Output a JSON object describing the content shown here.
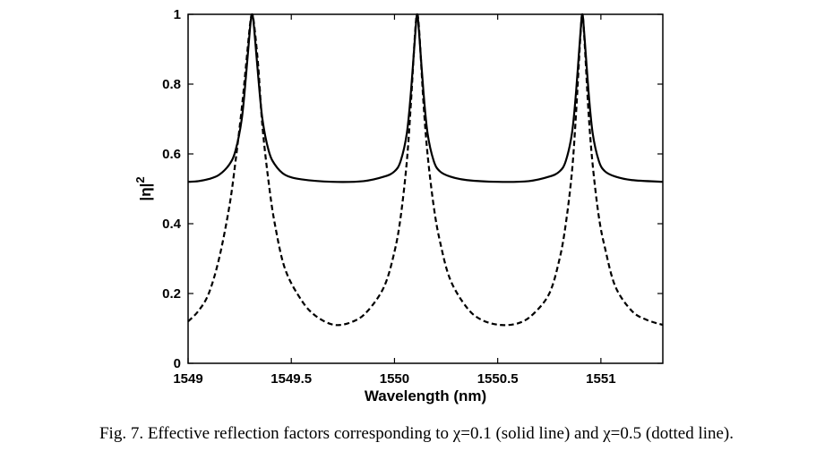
{
  "caption": "Fig. 7. Effective reflection factors corresponding to χ=0.1 (solid line) and χ=0.5 (dotted line).",
  "chart_data": {
    "type": "line",
    "xlabel": "Wavelength (nm)",
    "ylabel": "|η|",
    "ylabel_superscript": "2",
    "xlim": [
      1549,
      1551.3
    ],
    "ylim": [
      0,
      1
    ],
    "xticks": [
      1549,
      1549.5,
      1550,
      1550.5,
      1551
    ],
    "xtick_labels": [
      "1549",
      "1549.5",
      "1550",
      "1550.5",
      "1551"
    ],
    "yticks": [
      0,
      0.2,
      0.4,
      0.6,
      0.8,
      1
    ],
    "ytick_labels": [
      "0",
      "0.2",
      "0.4",
      "0.6",
      "0.8",
      "1"
    ],
    "grid": false,
    "legend": false,
    "series": [
      {
        "style": "solid",
        "color": "#000000",
        "x": [
          1549.0,
          1549.05,
          1549.1,
          1549.15,
          1549.2,
          1549.23,
          1549.26,
          1549.28,
          1549.3,
          1549.31,
          1549.32,
          1549.34,
          1549.36,
          1549.39,
          1549.42,
          1549.47,
          1549.55,
          1549.7,
          1549.85,
          1549.95,
          1550.0,
          1550.03,
          1550.06,
          1550.08,
          1550.1,
          1550.11,
          1550.12,
          1550.14,
          1550.16,
          1550.19,
          1550.22,
          1550.27,
          1550.35,
          1550.5,
          1550.65,
          1550.75,
          1550.8,
          1550.83,
          1550.86,
          1550.88,
          1550.9,
          1550.91,
          1550.92,
          1550.94,
          1550.96,
          1550.99,
          1551.02,
          1551.07,
          1551.15,
          1551.3
        ],
        "y": [
          0.52,
          0.522,
          0.528,
          0.54,
          0.57,
          0.61,
          0.7,
          0.82,
          0.96,
          1.0,
          0.96,
          0.82,
          0.7,
          0.61,
          0.57,
          0.54,
          0.527,
          0.52,
          0.522,
          0.535,
          0.55,
          0.58,
          0.66,
          0.78,
          0.94,
          1.0,
          0.94,
          0.78,
          0.66,
          0.58,
          0.55,
          0.535,
          0.525,
          0.52,
          0.522,
          0.535,
          0.55,
          0.58,
          0.66,
          0.78,
          0.94,
          1.0,
          0.94,
          0.78,
          0.66,
          0.58,
          0.55,
          0.535,
          0.525,
          0.52
        ]
      },
      {
        "style": "dashed",
        "color": "#000000",
        "x": [
          1549.0,
          1549.05,
          1549.1,
          1549.15,
          1549.2,
          1549.23,
          1549.26,
          1549.28,
          1549.3,
          1549.31,
          1549.32,
          1549.34,
          1549.36,
          1549.39,
          1549.42,
          1549.47,
          1549.55,
          1549.62,
          1549.71,
          1549.8,
          1549.87,
          1549.95,
          1550.0,
          1550.03,
          1550.06,
          1550.08,
          1550.1,
          1550.11,
          1550.12,
          1550.14,
          1550.16,
          1550.19,
          1550.22,
          1550.27,
          1550.35,
          1550.42,
          1550.51,
          1550.6,
          1550.67,
          1550.75,
          1550.8,
          1550.83,
          1550.86,
          1550.88,
          1550.9,
          1550.91,
          1550.92,
          1550.94,
          1550.96,
          1550.99,
          1551.02,
          1551.07,
          1551.15,
          1551.22,
          1551.3
        ],
        "y": [
          0.12,
          0.15,
          0.2,
          0.3,
          0.45,
          0.58,
          0.73,
          0.85,
          0.97,
          1.0,
          0.97,
          0.85,
          0.68,
          0.52,
          0.4,
          0.27,
          0.18,
          0.135,
          0.11,
          0.12,
          0.15,
          0.22,
          0.32,
          0.42,
          0.58,
          0.75,
          0.95,
          1.0,
          0.95,
          0.75,
          0.6,
          0.45,
          0.35,
          0.24,
          0.16,
          0.125,
          0.11,
          0.115,
          0.14,
          0.2,
          0.3,
          0.4,
          0.55,
          0.72,
          0.93,
          1.0,
          0.93,
          0.72,
          0.57,
          0.42,
          0.33,
          0.22,
          0.15,
          0.125,
          0.11
        ]
      }
    ]
  }
}
